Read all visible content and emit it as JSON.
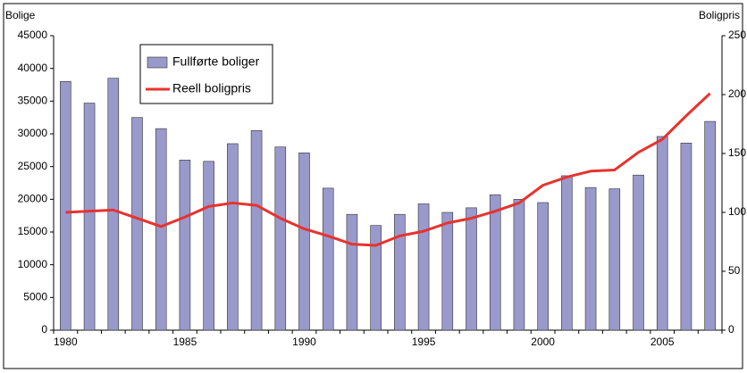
{
  "chart_data": {
    "type": "bar-line",
    "y_label": "Bolige",
    "y2_label": "Boligpris",
    "categories": [
      1980,
      null,
      null,
      null,
      null,
      1985,
      null,
      null,
      null,
      null,
      1990,
      null,
      null,
      null,
      null,
      1995,
      null,
      null,
      null,
      null,
      2000,
      null,
      null,
      null,
      null,
      2005,
      null,
      null
    ],
    "series": [
      {
        "name": "Fullførte boliger",
        "type": "bar",
        "color": "#9999cc",
        "values": [
          38000,
          34700,
          38500,
          32500,
          30800,
          26000,
          25800,
          28500,
          30500,
          28000,
          27100,
          21700,
          17700,
          16000,
          17700,
          19300,
          18000,
          18700,
          20700,
          20000,
          19500,
          23600,
          21800,
          21600,
          23700,
          29600,
          28600,
          31900
        ]
      },
      {
        "name": "Reell boligpris",
        "type": "line",
        "color": "#e8322e",
        "axis": "y2",
        "values": [
          100,
          101,
          102,
          95,
          88,
          96,
          105,
          108,
          106,
          95,
          86,
          80,
          73,
          72,
          80,
          84,
          91,
          95,
          101,
          108,
          123,
          130,
          135,
          136,
          151,
          162,
          182,
          201
        ]
      }
    ],
    "ylim": [
      0,
      45000
    ],
    "yticks": [
      0,
      5000,
      10000,
      15000,
      20000,
      25000,
      30000,
      35000,
      40000,
      45000
    ],
    "y2lim": [
      0,
      250
    ],
    "y2ticks": [
      0,
      50,
      100,
      150,
      200,
      250
    ],
    "legend": "upper left"
  }
}
